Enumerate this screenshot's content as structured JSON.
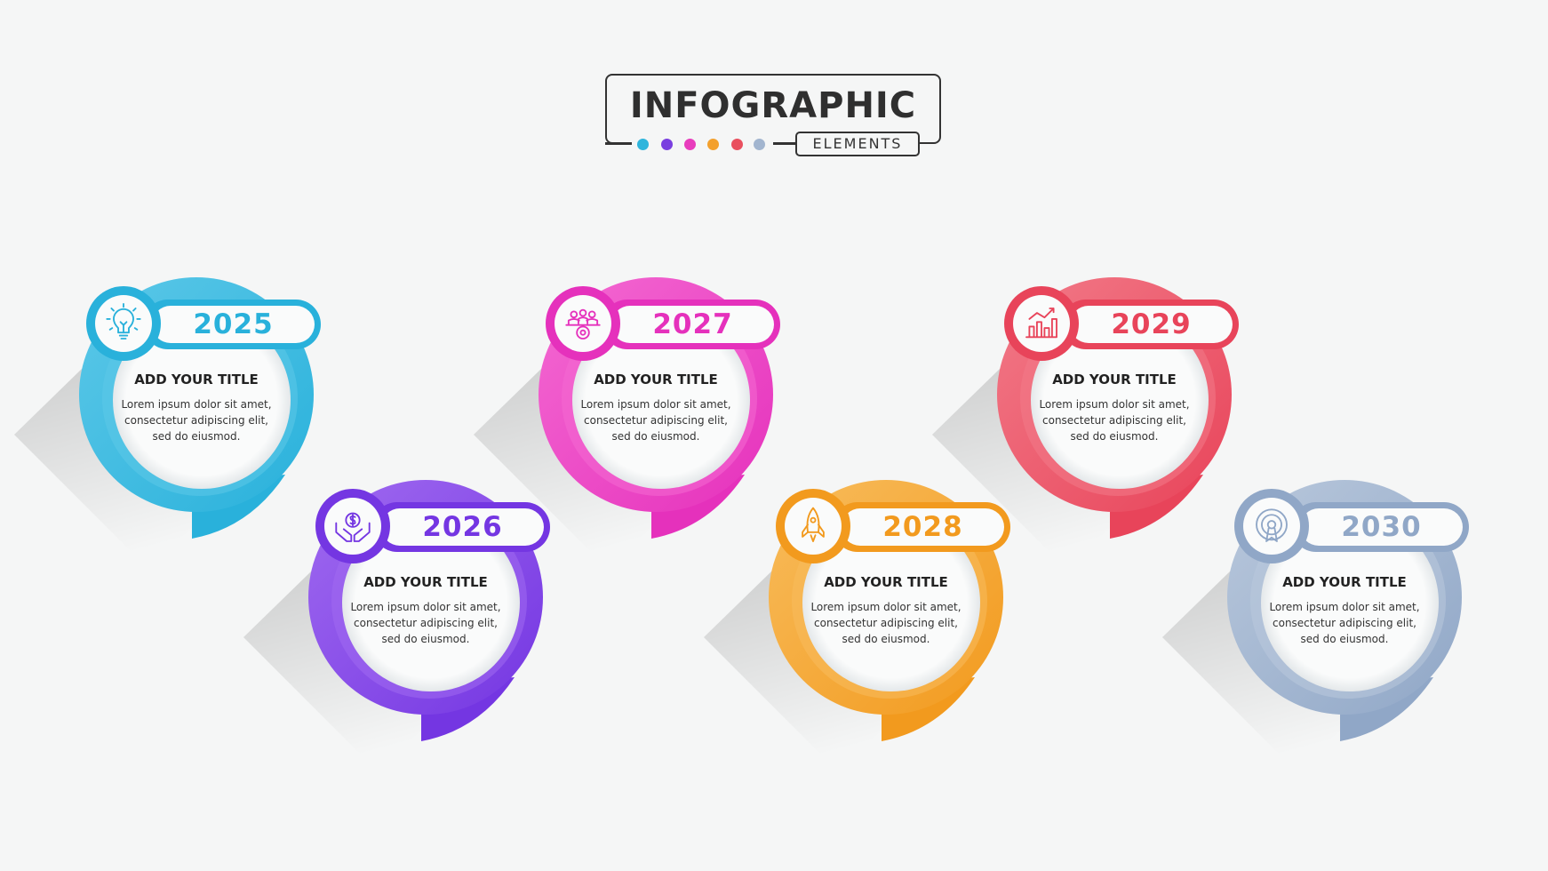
{
  "header": {
    "title": "INFOGRAPHIC",
    "subtitle": "ELEMENTS",
    "dot_colors": [
      "#2fb5dc",
      "#7a3fe0",
      "#e83dbd",
      "#f3a02d",
      "#e9505f",
      "#a2b5cf"
    ]
  },
  "cards": [
    {
      "year": "2025",
      "title": "ADD YOUR TITLE",
      "body": [
        "Lorem ipsum dolor sit amet,",
        "consectetur adipiscing elit,",
        "sed do eiusmod."
      ],
      "color": "#29b1db",
      "color_light": "#5cc8e8",
      "icon": "lightbulb-icon"
    },
    {
      "year": "2026",
      "title": "ADD YOUR TITLE",
      "body": [
        "Lorem ipsum dolor sit amet,",
        "consectetur adipiscing elit,",
        "sed do eiusmod."
      ],
      "color": "#7436e2",
      "color_light": "#a06af0",
      "icon": "money-hands-icon"
    },
    {
      "year": "2027",
      "title": "ADD YOUR TITLE",
      "body": [
        "Lorem ipsum dolor sit amet,",
        "consectetur adipiscing elit,",
        "sed do eiusmod."
      ],
      "color": "#e531bc",
      "color_light": "#f46ad2",
      "icon": "team-gear-icon"
    },
    {
      "year": "2028",
      "title": "ADD YOUR TITLE",
      "body": [
        "Lorem ipsum dolor sit amet,",
        "consectetur adipiscing elit,",
        "sed do eiusmod."
      ],
      "color": "#f29a1e",
      "color_light": "#f8bc5c",
      "icon": "rocket-icon"
    },
    {
      "year": "2029",
      "title": "ADD YOUR TITLE",
      "body": [
        "Lorem ipsum dolor sit amet,",
        "consectetur adipiscing elit,",
        "sed do eiusmod."
      ],
      "color": "#e8445a",
      "color_light": "#f27a88",
      "icon": "bar-chart-icon"
    },
    {
      "year": "2030",
      "title": "ADD YOUR TITLE",
      "body": [
        "Lorem ipsum dolor sit amet,",
        "consectetur adipiscing elit,",
        "sed do eiusmod."
      ],
      "color": "#90a7c7",
      "color_light": "#b9c8dc",
      "icon": "target-signal-icon"
    }
  ]
}
